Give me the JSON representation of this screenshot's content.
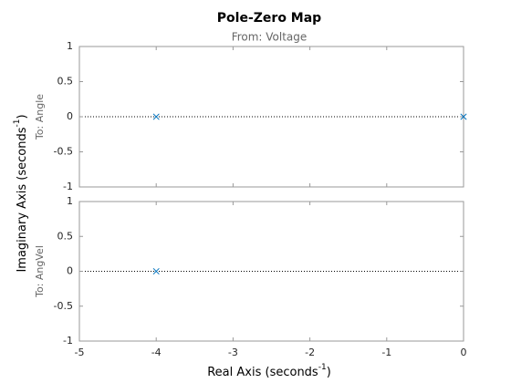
{
  "chart_data": [
    {
      "type": "scatter",
      "title": "Pole-Zero Map",
      "subtitle": "From: Voltage",
      "ylabel": {
        "text": "Imaginary Axis (seconds",
        "sup": "-1",
        "end": ")"
      },
      "row_label": "To: Angle",
      "series": [
        {
          "color": "#0072bd",
          "marker": "x",
          "x": [
            -4,
            0
          ],
          "values": [
            0,
            0
          ]
        }
      ],
      "xlim": [
        -5,
        0
      ],
      "ylim": [
        -1,
        1
      ],
      "yticks": [
        -1,
        -0.5,
        0,
        0.5,
        1
      ]
    },
    {
      "type": "scatter",
      "xlabel": {
        "text": "Real Axis (seconds",
        "sup": "-1",
        "end": ")"
      },
      "row_label": "To: AngVel",
      "series": [
        {
          "color": "#0072bd",
          "marker": "x",
          "x": [
            -4
          ],
          "values": [
            0
          ]
        }
      ],
      "xlim": [
        -5,
        0
      ],
      "ylim": [
        -1,
        1
      ],
      "yticks": [
        -1,
        -0.5,
        0,
        0.5,
        1
      ],
      "xticks": [
        -5,
        -4,
        -3,
        -2,
        -1,
        0
      ]
    }
  ]
}
